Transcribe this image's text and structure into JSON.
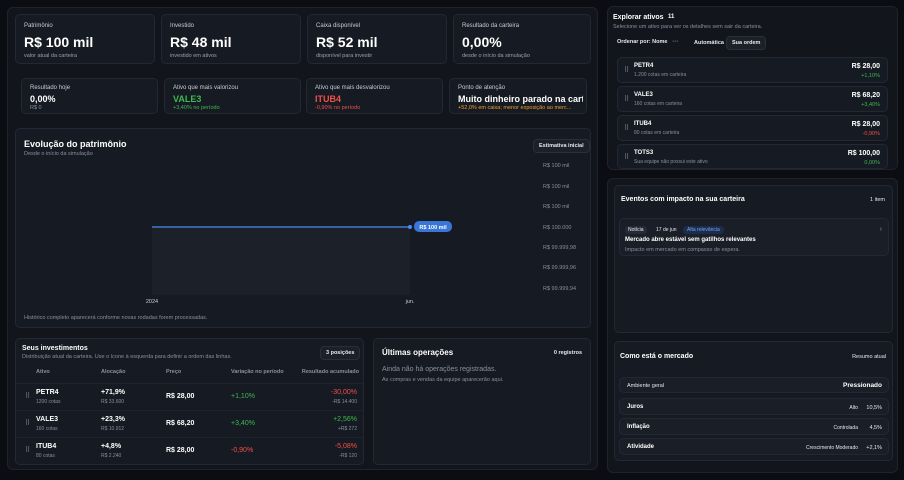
{
  "stats": [
    {
      "label": "Patrimônio",
      "value": "R$ 100 mil",
      "sub": "valor atual da carteira"
    },
    {
      "label": "Investido",
      "value": "R$ 48 mil",
      "sub": "investido em ativos"
    },
    {
      "label": "Caixa disponível",
      "value": "R$ 52 mil",
      "sub": "disponível para investir"
    },
    {
      "label": "Resultado da carteira",
      "value": "0,00%",
      "sub": "desde o início da simulação"
    }
  ],
  "highlights": [
    {
      "label": "Resultado hoje",
      "value": "0,00%",
      "sub": "R$ 0"
    },
    {
      "label": "Ativo que mais valorizou",
      "value": "VALE3",
      "sub": "+3,40% no período"
    },
    {
      "label": "Ativo que mais desvalorizou",
      "value": "ITUB4",
      "sub": "-0,90% no período"
    },
    {
      "label": "Ponto de atenção",
      "value": "Muito dinheiro parado na cart...",
      "sub": "+52,0% em caixa; menor exposição ao merc..."
    }
  ],
  "evolution": {
    "title": "Evolução do patrimônio",
    "subtitle": "Desde o início da simulação",
    "badge": "Estimativa inicial",
    "footer": "Histórico completo aparecerá conforme novas rodadas forem processadas."
  },
  "chart_data": {
    "type": "line",
    "x": [
      "2024",
      "jun."
    ],
    "series": [
      {
        "values": [
          100000,
          100000
        ]
      }
    ],
    "point_label": "R$ 100 mil",
    "yticks": [
      "R$ 100 mil",
      "R$ 100 mil",
      "R$ 100 mil",
      "R$ 100.000",
      "R$ 99.999,98",
      "R$ 99.999,96",
      "R$ 99.999,94"
    ],
    "xticks": [
      "2024",
      "jun."
    ],
    "line_color": "#4a8cf0"
  },
  "investments": {
    "title": "Seus investimentos",
    "subtitle": "Distribuição atual da carteira. Use o ícone à esquerda para definir a ordem das linhas.",
    "badge": "3 posições",
    "columns": [
      "Ativo",
      "Alocação",
      "Preço",
      "Variação no período",
      "Resultado acumulado"
    ],
    "rows": [
      {
        "ticker": "PETR4",
        "qty": "1200 cotas",
        "alloc": "+71,9%",
        "alloc_value": "R$ 33.600",
        "price": "R$ 28,00",
        "var": "+1,10%",
        "result": "-30,00%",
        "result_value": "-R$ 14.400"
      },
      {
        "ticker": "VALE3",
        "qty": "160 cotas",
        "alloc": "+23,3%",
        "alloc_value": "R$ 10.912",
        "price": "R$ 68,20",
        "var": "+3,40%",
        "result": "+2,56%",
        "result_value": "+R$ 272"
      },
      {
        "ticker": "ITUB4",
        "qty": "80 cotas",
        "alloc": "+4,8%",
        "alloc_value": "R$ 2.240",
        "price": "R$ 28,00",
        "var": "-0,90%",
        "result": "-5,08%",
        "result_value": "-R$ 120"
      }
    ]
  },
  "operations": {
    "title": "Últimas operações",
    "badge": "0 registros",
    "empty_title": "Ainda não há operações registradas.",
    "empty_sub": "As compras e vendas da equipe aparecerão aqui."
  },
  "explore": {
    "title": "Explorar ativos",
    "count": "11",
    "subtitle": "Selecione um ativo para ver os detalhes sem sair da carteira.",
    "sort_label": "Ordenar por: Nome",
    "btn_auto": "Automática",
    "btn_order": "Sua ordem",
    "assets": [
      {
        "ticker": "PETR4",
        "desc": "1.200 cotas em carteira",
        "price": "R$ 28,00",
        "change": "+1,10%",
        "dir": "up"
      },
      {
        "ticker": "VALE3",
        "desc": "160 cotas em carteira",
        "price": "R$ 68,20",
        "change": "+3,40%",
        "dir": "up"
      },
      {
        "ticker": "ITUB4",
        "desc": "80 cotas em carteira",
        "price": "R$ 28,00",
        "change": "-0,90%",
        "dir": "down"
      },
      {
        "ticker": "TOTS3",
        "desc": "Sua equipe não possui este ativo",
        "price": "R$ 100,00",
        "change": "0,00%",
        "dir": "up"
      }
    ]
  },
  "events": {
    "title": "Eventos com impacto na sua carteira",
    "count": "1 item",
    "item": {
      "type": "Notícia",
      "date": "17 de jun",
      "tag": "Alta relevância",
      "title": "Mercado abre estável sem gatilhos relevantes",
      "desc": "Impacto em mercado em compasso de espera."
    }
  },
  "market": {
    "title": "Como está o mercado",
    "badge": "Resumo atual",
    "env_label": "Ambiente geral",
    "env_value": "Pressionado",
    "items": [
      {
        "label": "Juros",
        "tag": "Alto",
        "value": "10,5%"
      },
      {
        "label": "Inflação",
        "tag": "Controlada",
        "value": "4,5%"
      },
      {
        "label": "Atividade",
        "tag": "Crescimento Moderado",
        "value": "+2,1%"
      }
    ]
  }
}
